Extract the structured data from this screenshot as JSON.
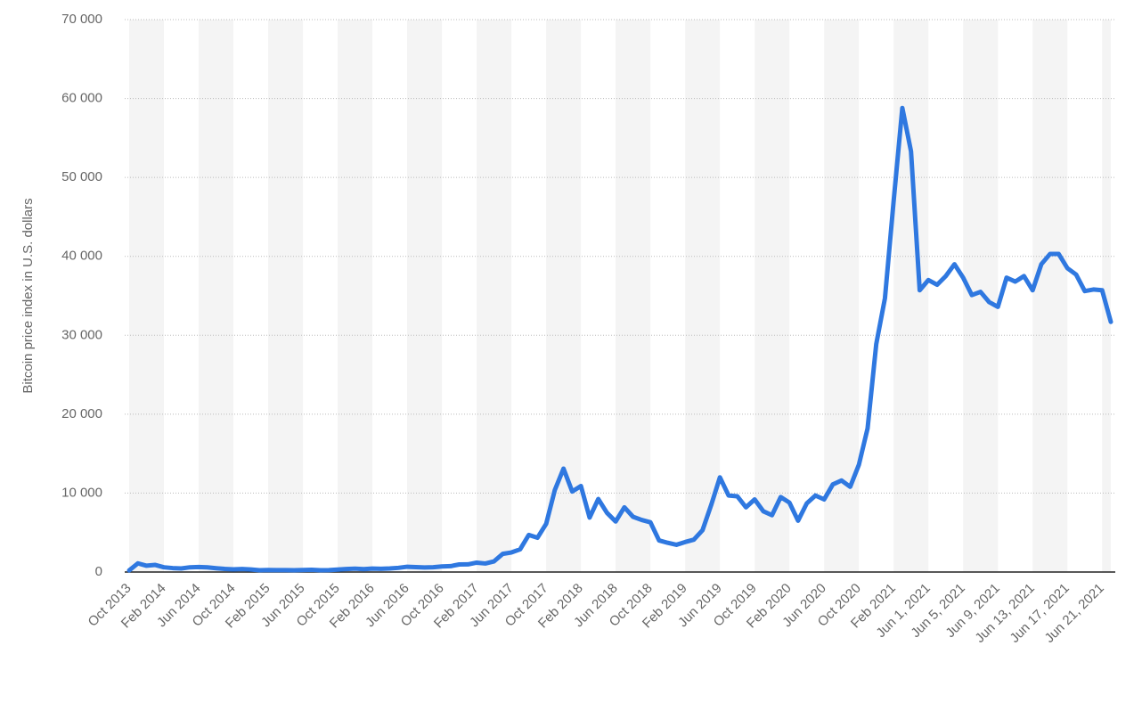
{
  "chart_data": {
    "type": "line",
    "y_label": "Bitcoin price index in U.S. dollars",
    "categories": [
      "Oct 2013",
      null,
      null,
      null,
      "Feb 2014",
      null,
      null,
      null,
      "Jun 2014",
      null,
      null,
      null,
      "Oct 2014",
      null,
      null,
      null,
      "Feb 2015",
      null,
      null,
      null,
      "Jun 2015",
      null,
      null,
      null,
      "Oct 2015",
      null,
      null,
      null,
      "Feb 2016",
      null,
      null,
      null,
      "Jun 2016",
      null,
      null,
      null,
      "Oct 2016",
      null,
      null,
      null,
      "Feb 2017",
      null,
      null,
      null,
      "Jun 2017",
      null,
      null,
      null,
      "Oct 2017",
      null,
      null,
      null,
      "Feb 2018",
      null,
      null,
      null,
      "Jun 2018",
      null,
      null,
      null,
      "Oct 2018",
      null,
      null,
      null,
      "Feb 2019",
      null,
      null,
      null,
      "Jun 2019",
      null,
      null,
      null,
      "Oct 2019",
      null,
      null,
      null,
      "Feb 2020",
      null,
      null,
      null,
      "Jun 2020",
      null,
      null,
      null,
      "Oct 2020",
      null,
      null,
      null,
      "Feb 2021",
      null,
      null,
      null,
      "Jun 1, 2021",
      null,
      null,
      null,
      "Jun 5, 2021",
      null,
      null,
      null,
      "Jun 9, 2021",
      null,
      null,
      null,
      "Jun 13, 2021",
      null,
      null,
      null,
      "Jun 17, 2021",
      null,
      null,
      null,
      "Jun 21, 2021",
      null
    ],
    "series": [
      {
        "name": "Bitcoin price index",
        "color": "#2f78e0",
        "values": [
          200,
          1100,
          800,
          900,
          600,
          500,
          450,
          600,
          640,
          590,
          480,
          390,
          340,
          380,
          320,
          220,
          255,
          245,
          235,
          230,
          260,
          285,
          230,
          237,
          310,
          380,
          430,
          370,
          437,
          416,
          450,
          530,
          670,
          625,
          575,
          610,
          700,
          745,
          960,
          970,
          1190,
          1080,
          1350,
          2300,
          2480,
          2870,
          4700,
          4340,
          6100,
          10400,
          13100,
          10200,
          10900,
          6900,
          9250,
          7500,
          6400,
          8200,
          7000,
          6600,
          6300,
          4000,
          3700,
          3450,
          3800,
          4100,
          5300,
          8500,
          12000,
          9700,
          9600,
          8200,
          9200,
          7700,
          7200,
          9500,
          8800,
          6500,
          8700,
          9700,
          9200,
          11100,
          11600,
          10800,
          13600,
          18200,
          28900,
          34700,
          47000,
          58800,
          53300,
          35700,
          37000,
          36400,
          37500,
          39000,
          37300,
          35100,
          35500,
          34200,
          33600,
          37300,
          36800,
          37500,
          35700,
          39000,
          40300,
          40300,
          38500,
          37700,
          35600,
          35800,
          35700,
          31700
        ]
      }
    ],
    "ylim": [
      0,
      70000
    ],
    "yticks": [
      0,
      {
        "value": 10000,
        "label": "10 000"
      },
      {
        "value": 20000,
        "label": "20 000"
      },
      {
        "value": 30000,
        "label": "30 000"
      },
      {
        "value": 40000,
        "label": "40 000"
      },
      {
        "value": 50000,
        "label": "50 000"
      },
      {
        "value": 60000,
        "label": "60 000"
      },
      {
        "value": 70000,
        "label": "70 000"
      }
    ],
    "grid": true
  }
}
